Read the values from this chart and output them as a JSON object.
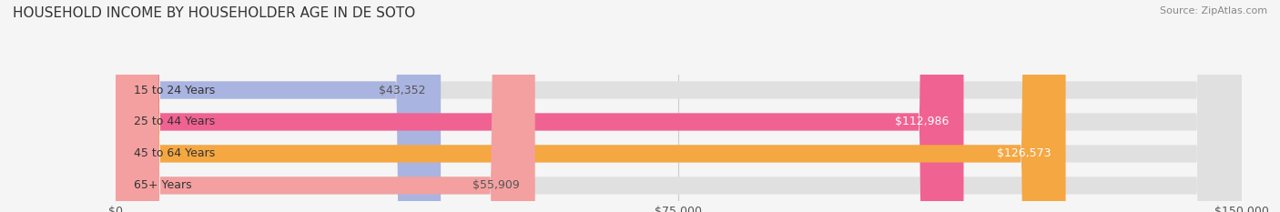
{
  "title": "HOUSEHOLD INCOME BY HOUSEHOLDER AGE IN DE SOTO",
  "source": "Source: ZipAtlas.com",
  "categories": [
    "15 to 24 Years",
    "25 to 44 Years",
    "45 to 64 Years",
    "65+ Years"
  ],
  "values": [
    43352,
    112986,
    126573,
    55909
  ],
  "bar_colors": [
    "#aab4e0",
    "#f06292",
    "#f5a742",
    "#f4a0a0"
  ],
  "label_colors": [
    "#555555",
    "#ffffff",
    "#ffffff",
    "#555555"
  ],
  "background_color": "#f5f5f5",
  "bar_bg_color": "#e0e0e0",
  "xlim": [
    0,
    150000
  ],
  "xticks": [
    0,
    75000,
    150000
  ],
  "xtick_labels": [
    "$0",
    "$75,000",
    "$150,000"
  ],
  "title_fontsize": 11,
  "source_fontsize": 8,
  "bar_height": 0.55,
  "bar_label_fontsize": 9,
  "category_fontsize": 9
}
